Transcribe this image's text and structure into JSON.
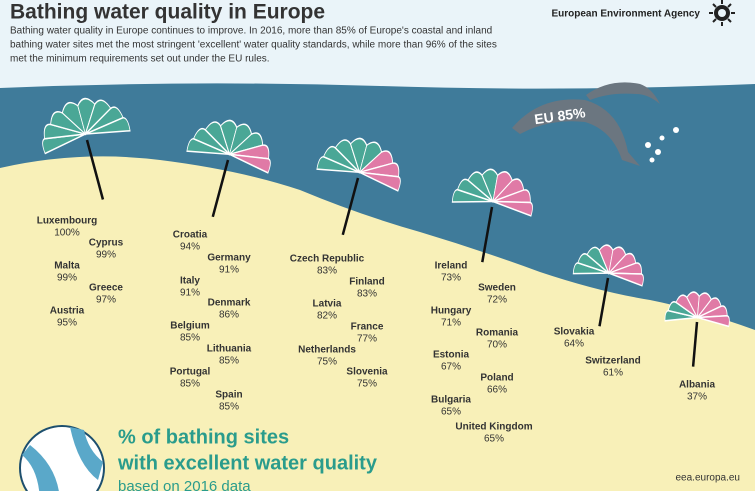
{
  "header": {
    "title": "Bathing water quality in Europe",
    "intro_lines": [
      "Bathing water quality in Europe continues to improve. In 2016, more than 85% of Europe's coastal and inland",
      "bathing water sites met the most stringent 'excellent' water quality standards, while more than 96% of the sites",
      "met the minimum requirements set out under the EU rules."
    ],
    "agency": "European Environment Agency"
  },
  "dolphin_label": "EU 85%",
  "groups": [
    {
      "countries": [
        {
          "name": "Luxembourg",
          "value": "100%"
        },
        {
          "name": "Cyprus",
          "value": "99%"
        },
        {
          "name": "Malta",
          "value": "99%"
        },
        {
          "name": "Greece",
          "value": "97%"
        },
        {
          "name": "Austria",
          "value": "95%"
        }
      ]
    },
    {
      "countries": [
        {
          "name": "Croatia",
          "value": "94%"
        },
        {
          "name": "Germany",
          "value": "91%"
        },
        {
          "name": "Italy",
          "value": "91%"
        },
        {
          "name": "Denmark",
          "value": "86%"
        },
        {
          "name": "Belgium",
          "value": "85%"
        },
        {
          "name": "Lithuania",
          "value": "85%"
        },
        {
          "name": "Portugal",
          "value": "85%"
        },
        {
          "name": "Spain",
          "value": "85%"
        }
      ]
    },
    {
      "countries": [
        {
          "name": "Czech Republic",
          "value": "83%"
        },
        {
          "name": "Finland",
          "value": "83%"
        },
        {
          "name": "Latvia",
          "value": "82%"
        },
        {
          "name": "France",
          "value": "77%"
        },
        {
          "name": "Netherlands",
          "value": "75%"
        },
        {
          "name": "Slovenia",
          "value": "75%"
        }
      ]
    },
    {
      "countries": [
        {
          "name": "Ireland",
          "value": "73%"
        },
        {
          "name": "Sweden",
          "value": "72%"
        },
        {
          "name": "Hungary",
          "value": "71%"
        },
        {
          "name": "Romania",
          "value": "70%"
        },
        {
          "name": "Estonia",
          "value": "67%"
        },
        {
          "name": "Poland",
          "value": "66%"
        },
        {
          "name": "Bulgaria",
          "value": "65%"
        },
        {
          "name": "United Kingdom",
          "value": "65%"
        }
      ]
    },
    {
      "countries": [
        {
          "name": "Slovakia",
          "value": "64%"
        },
        {
          "name": "Switzerland",
          "value": "61%"
        }
      ]
    },
    {
      "countries": [
        {
          "name": "Albania",
          "value": "37%"
        }
      ]
    }
  ],
  "footer": {
    "heading_lines": [
      "% of bathing sites",
      "with excellent water quality"
    ],
    "subheading": "based on 2016 data",
    "url": "eea.europa.eu"
  }
}
